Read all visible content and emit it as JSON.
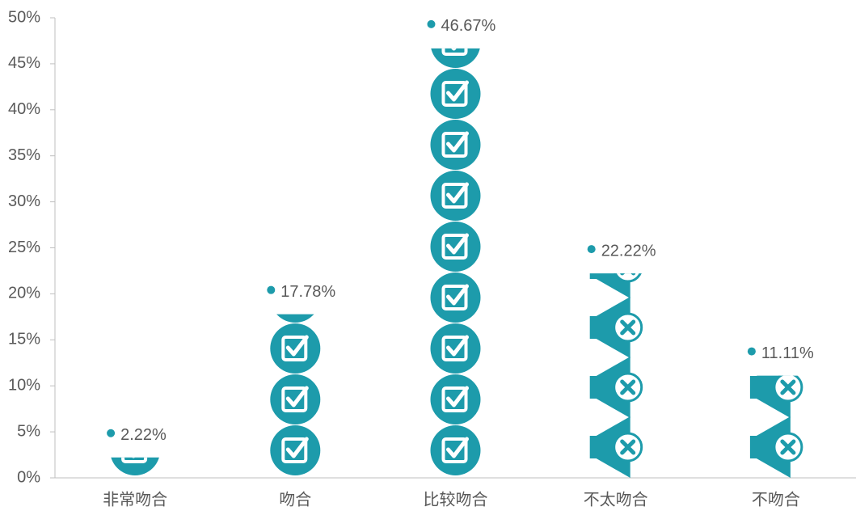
{
  "chart_data": {
    "type": "pictogram",
    "categories": [
      "非常吻合",
      "吻合",
      "比较吻合",
      "不太吻合",
      "不吻合"
    ],
    "values": [
      2.22,
      17.78,
      46.67,
      22.22,
      11.11
    ],
    "value_labels": [
      "2.22%",
      "17.78%",
      "46.67%",
      "22.22%",
      "11.11%"
    ],
    "icons": [
      "check",
      "check",
      "check",
      "cross",
      "cross"
    ],
    "color": "#1d9bab",
    "ylim": [
      0,
      50
    ],
    "yticks": [
      {
        "value": 0,
        "label": "0%"
      },
      {
        "value": 5,
        "label": "5%"
      },
      {
        "value": 10,
        "label": "10%"
      },
      {
        "value": 15,
        "label": "15%"
      },
      {
        "value": 20,
        "label": "20%"
      },
      {
        "value": 25,
        "label": "25%"
      },
      {
        "value": 30,
        "label": "30%"
      },
      {
        "value": 35,
        "label": "35%"
      },
      {
        "value": 40,
        "label": "40%"
      },
      {
        "value": 45,
        "label": "45%"
      },
      {
        "value": 50,
        "label": "50%"
      }
    ]
  }
}
